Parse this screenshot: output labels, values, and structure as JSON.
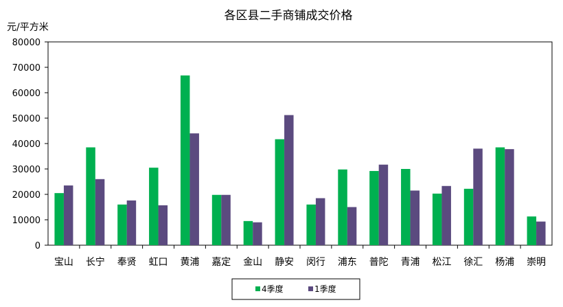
{
  "chart_data": {
    "type": "bar",
    "title": "各区县二手商铺成交价格",
    "ylabel": "元/平方米",
    "xlabel": "",
    "categories": [
      "宝山",
      "长宁",
      "奉贤",
      "虹口",
      "黄浦",
      "嘉定",
      "金山",
      "静安",
      "闵行",
      "浦东",
      "普陀",
      "青浦",
      "松江",
      "徐汇",
      "杨浦",
      "崇明"
    ],
    "series": [
      {
        "name": "4季度",
        "color": "#00b050",
        "values": [
          20500,
          38500,
          16000,
          30500,
          66800,
          19800,
          9500,
          41700,
          16000,
          29800,
          29200,
          30000,
          20300,
          22200,
          38500,
          11300
        ]
      },
      {
        "name": "1季度",
        "color": "#5b4a7f",
        "values": [
          23500,
          26000,
          17600,
          15700,
          44000,
          19800,
          9000,
          51200,
          18500,
          15000,
          31700,
          21500,
          23300,
          38000,
          37800,
          9300
        ]
      }
    ],
    "ylim": [
      0,
      80000
    ],
    "yticks": [
      0,
      10000,
      20000,
      30000,
      40000,
      50000,
      60000,
      70000,
      80000
    ],
    "grid": false,
    "legend_position": "bottom-center"
  }
}
